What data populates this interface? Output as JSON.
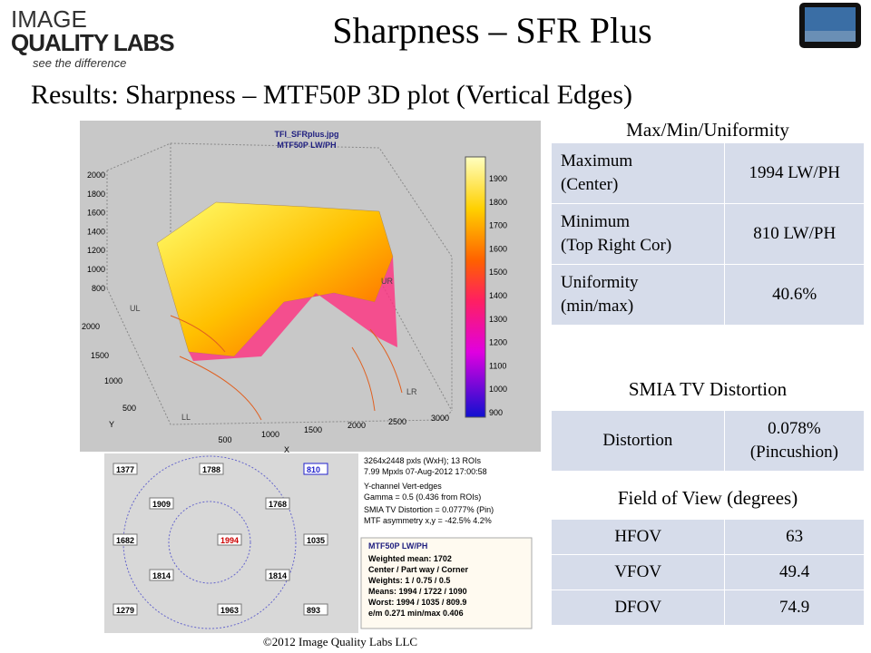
{
  "logo": {
    "line1": "IMAGE",
    "line2": "QUALITY LABS",
    "tagline": "see the difference"
  },
  "title": "Sharpness – SFR Plus",
  "subtitle": "Results: Sharpness – MTF50P 3D plot (Vertical Edges)",
  "plot": {
    "title1": "TFI_SFRplus.jpg",
    "title2": "MTF50P LW/PH",
    "z_ticks": [
      2000,
      1800,
      1600,
      1400,
      1200,
      1000,
      800
    ],
    "y_ticks": [
      2000,
      1500,
      1000,
      500
    ],
    "x_ticks": [
      500,
      1000,
      1500,
      2000,
      2500,
      3000
    ],
    "x_label": "X",
    "y_label": "Y",
    "corners": [
      "UL",
      "UR",
      "LL",
      "LR"
    ],
    "colorbar_ticks": [
      1900,
      1800,
      1700,
      1600,
      1500,
      1400,
      1300,
      1200,
      1100,
      1000,
      900
    ],
    "roi_values": [
      1377,
      1788,
      810,
      1909,
      1768,
      1682,
      1994,
      1035,
      1814,
      1814,
      1279,
      1963,
      893
    ],
    "info": [
      "3264x2448 pxls (WxH);  13 ROIs",
      "7.99 Mpxls   07-Aug-2012 17:00:58",
      "Y-channel   Vert-edges",
      "Gamma = 0.5  (0.436 from ROIs)",
      "SMIA TV Distortion = 0.0777%  (Pin)",
      "MTF asymmetry x,y = -42.5%  4.2%"
    ],
    "summary": {
      "title": "MTF50P LW/PH",
      "lines": [
        "Weighted mean: 1702",
        "Center / Part way / Corner",
        "Weights: 1 / 0.75 / 0.5",
        "Means:     1994 / 1722 / 1090",
        "Worst:      1994 / 1035 / 809.9",
        "e/m  0.271  min/max  0.406"
      ]
    }
  },
  "tables": [
    {
      "title": "Max/Min/Uniformity",
      "rows": [
        [
          "Maximum\n(Center)",
          "1994 LW/PH"
        ],
        [
          "Minimum\n(Top Right Cor)",
          "810 LW/PH"
        ],
        [
          "Uniformity\n(min/max)",
          "40.6%"
        ]
      ]
    },
    {
      "title": "SMIA TV Distortion",
      "rows": [
        [
          "Distortion",
          "0.078%\n(Pincushion)"
        ]
      ]
    },
    {
      "title": "Field of View (degrees)",
      "rows": [
        [
          "HFOV",
          "63"
        ],
        [
          "VFOV",
          "49.4"
        ],
        [
          "DFOV",
          "74.9"
        ]
      ]
    }
  ],
  "footer": "©2012 Image Quality Labs LLC"
}
